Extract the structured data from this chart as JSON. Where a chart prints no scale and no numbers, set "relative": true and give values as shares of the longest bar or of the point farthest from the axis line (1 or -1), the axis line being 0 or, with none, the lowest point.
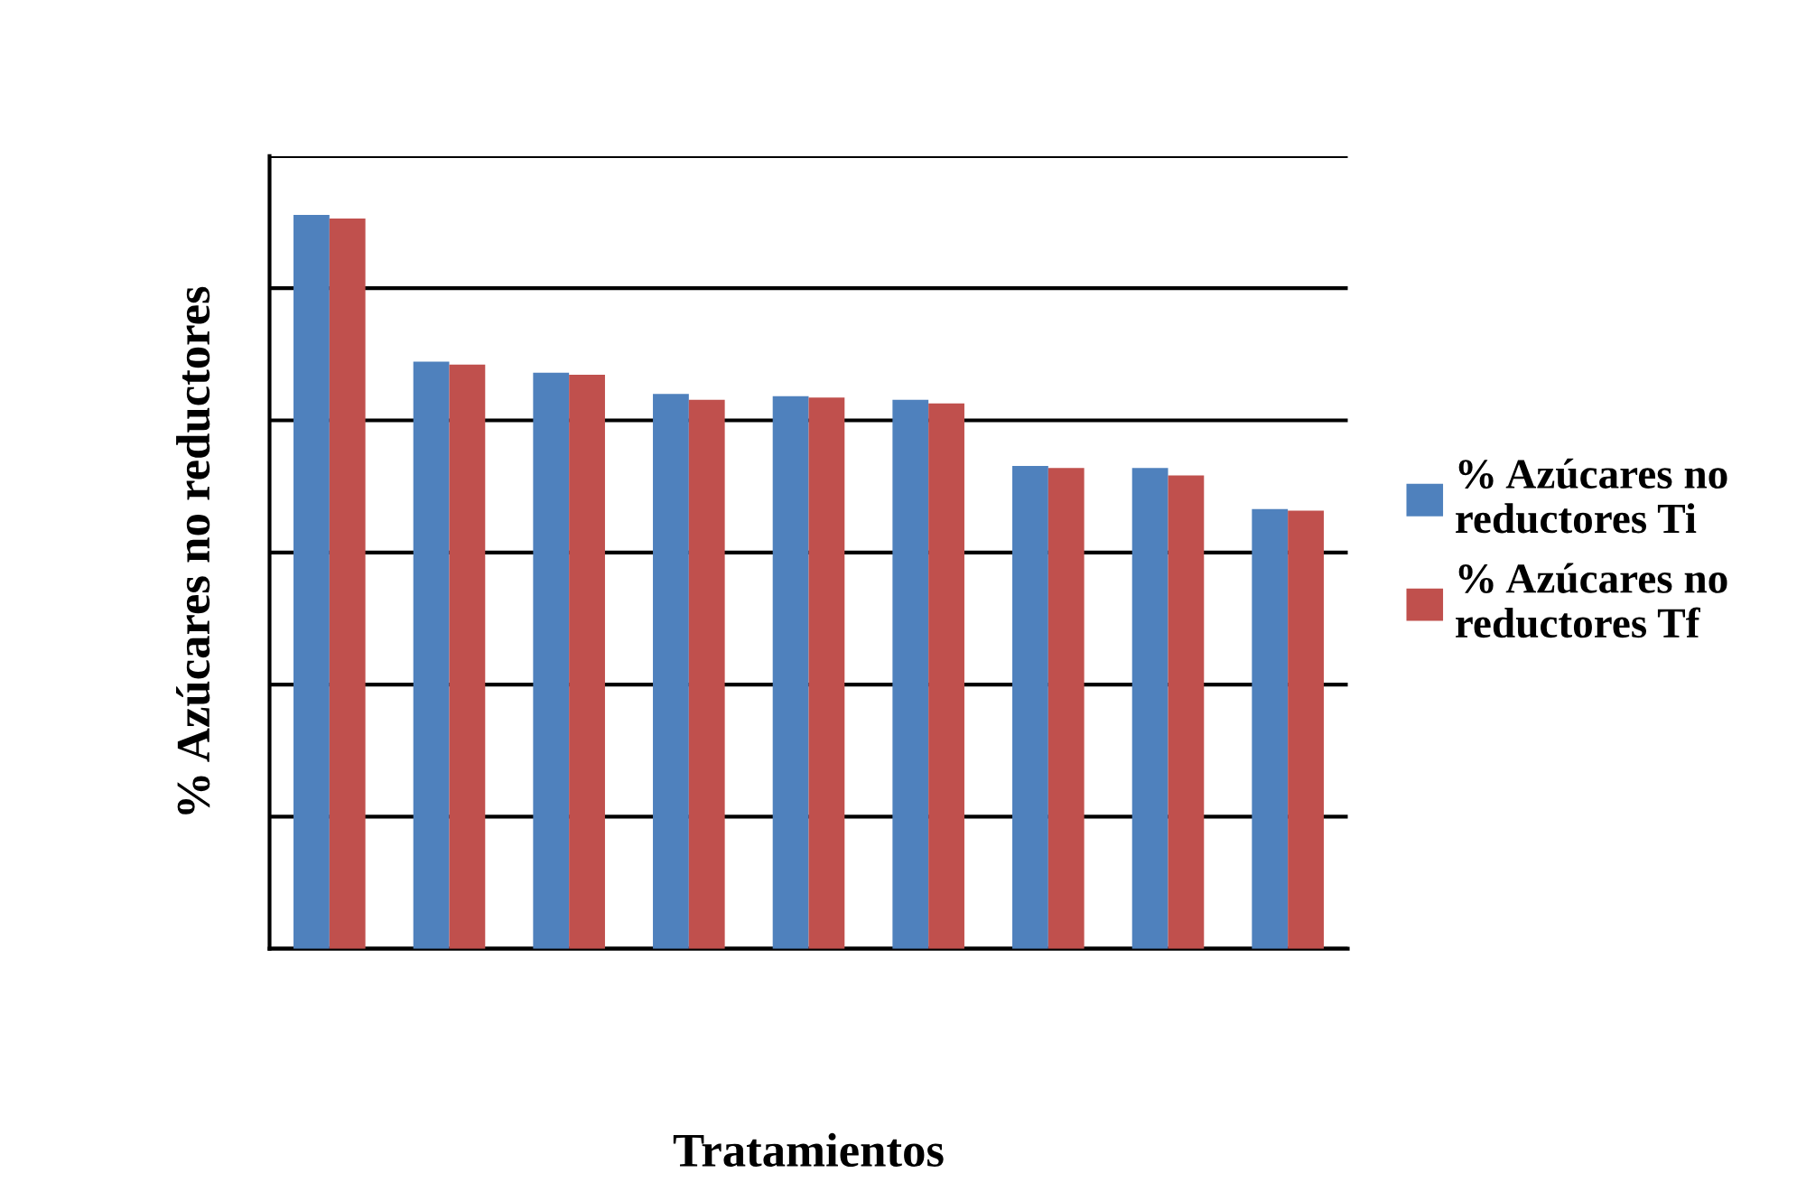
{
  "chart_data": {
    "type": "bar",
    "relative": true,
    "xlabel": "Tratamientos",
    "ylabel": "% Azúcares no reductores",
    "categories": [
      null,
      null,
      null,
      null,
      null,
      null,
      null,
      null,
      null
    ],
    "series": [
      {
        "name": "% Azúcares no reductores Ti",
        "color": "#4f81bd",
        "values": [
          1,
          0.8,
          0.785,
          0.756,
          0.753,
          0.748,
          0.658,
          0.655,
          0.599
        ]
      },
      {
        "name": "% Azúcares no reductores Tf",
        "color": "#c0504d",
        "values": [
          0.995,
          0.796,
          0.782,
          0.748,
          0.751,
          0.743,
          0.655,
          0.645,
          0.597
        ]
      }
    ],
    "grid": "y",
    "legend": "right"
  }
}
